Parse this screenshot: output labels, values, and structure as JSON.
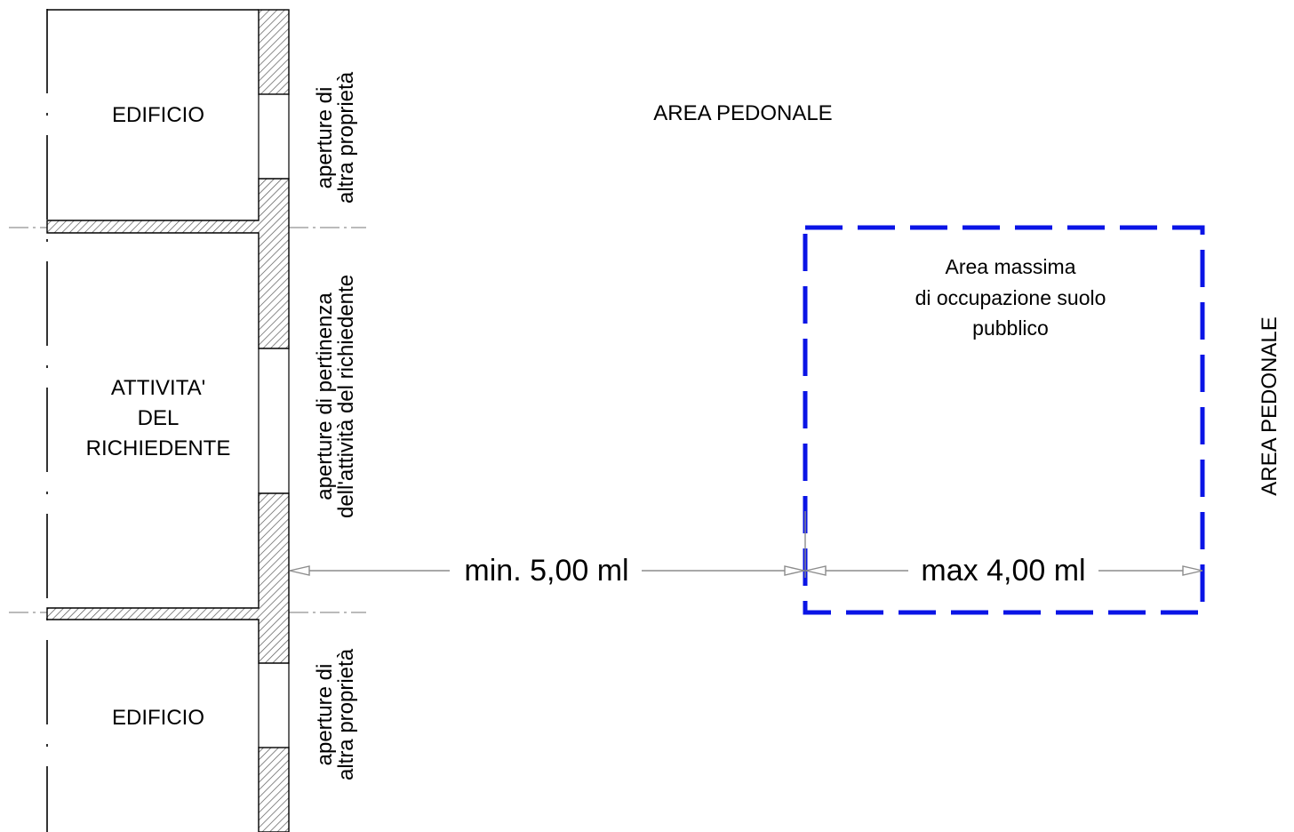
{
  "rooms": {
    "top": [
      "EDIFICIO"
    ],
    "middle": [
      "ATTIVITA'",
      "DEL",
      "RICHIEDENTE"
    ],
    "bottom": [
      "EDIFICIO"
    ]
  },
  "openings": {
    "top": [
      "aperture di",
      "altra proprietà"
    ],
    "middle": [
      "aperture di pertinenza",
      "dell'attività del richiedente"
    ],
    "bottom": [
      "aperture di",
      "altra proprietà"
    ]
  },
  "area_top": "AREA PEDONALE",
  "area_right": "AREA PEDONALE",
  "occupation_area": [
    "Area massima",
    "di occupazione suolo",
    "pubblico"
  ],
  "dimensions": {
    "min_distance": "min. 5,00 ml",
    "max_depth": "max 4,00 ml"
  },
  "colors": {
    "outline": "#000000",
    "hatch": "#555555",
    "occupation_border": "#0a14e6",
    "dimension_line": "#8c8c8c",
    "axis_line": "#777777"
  }
}
